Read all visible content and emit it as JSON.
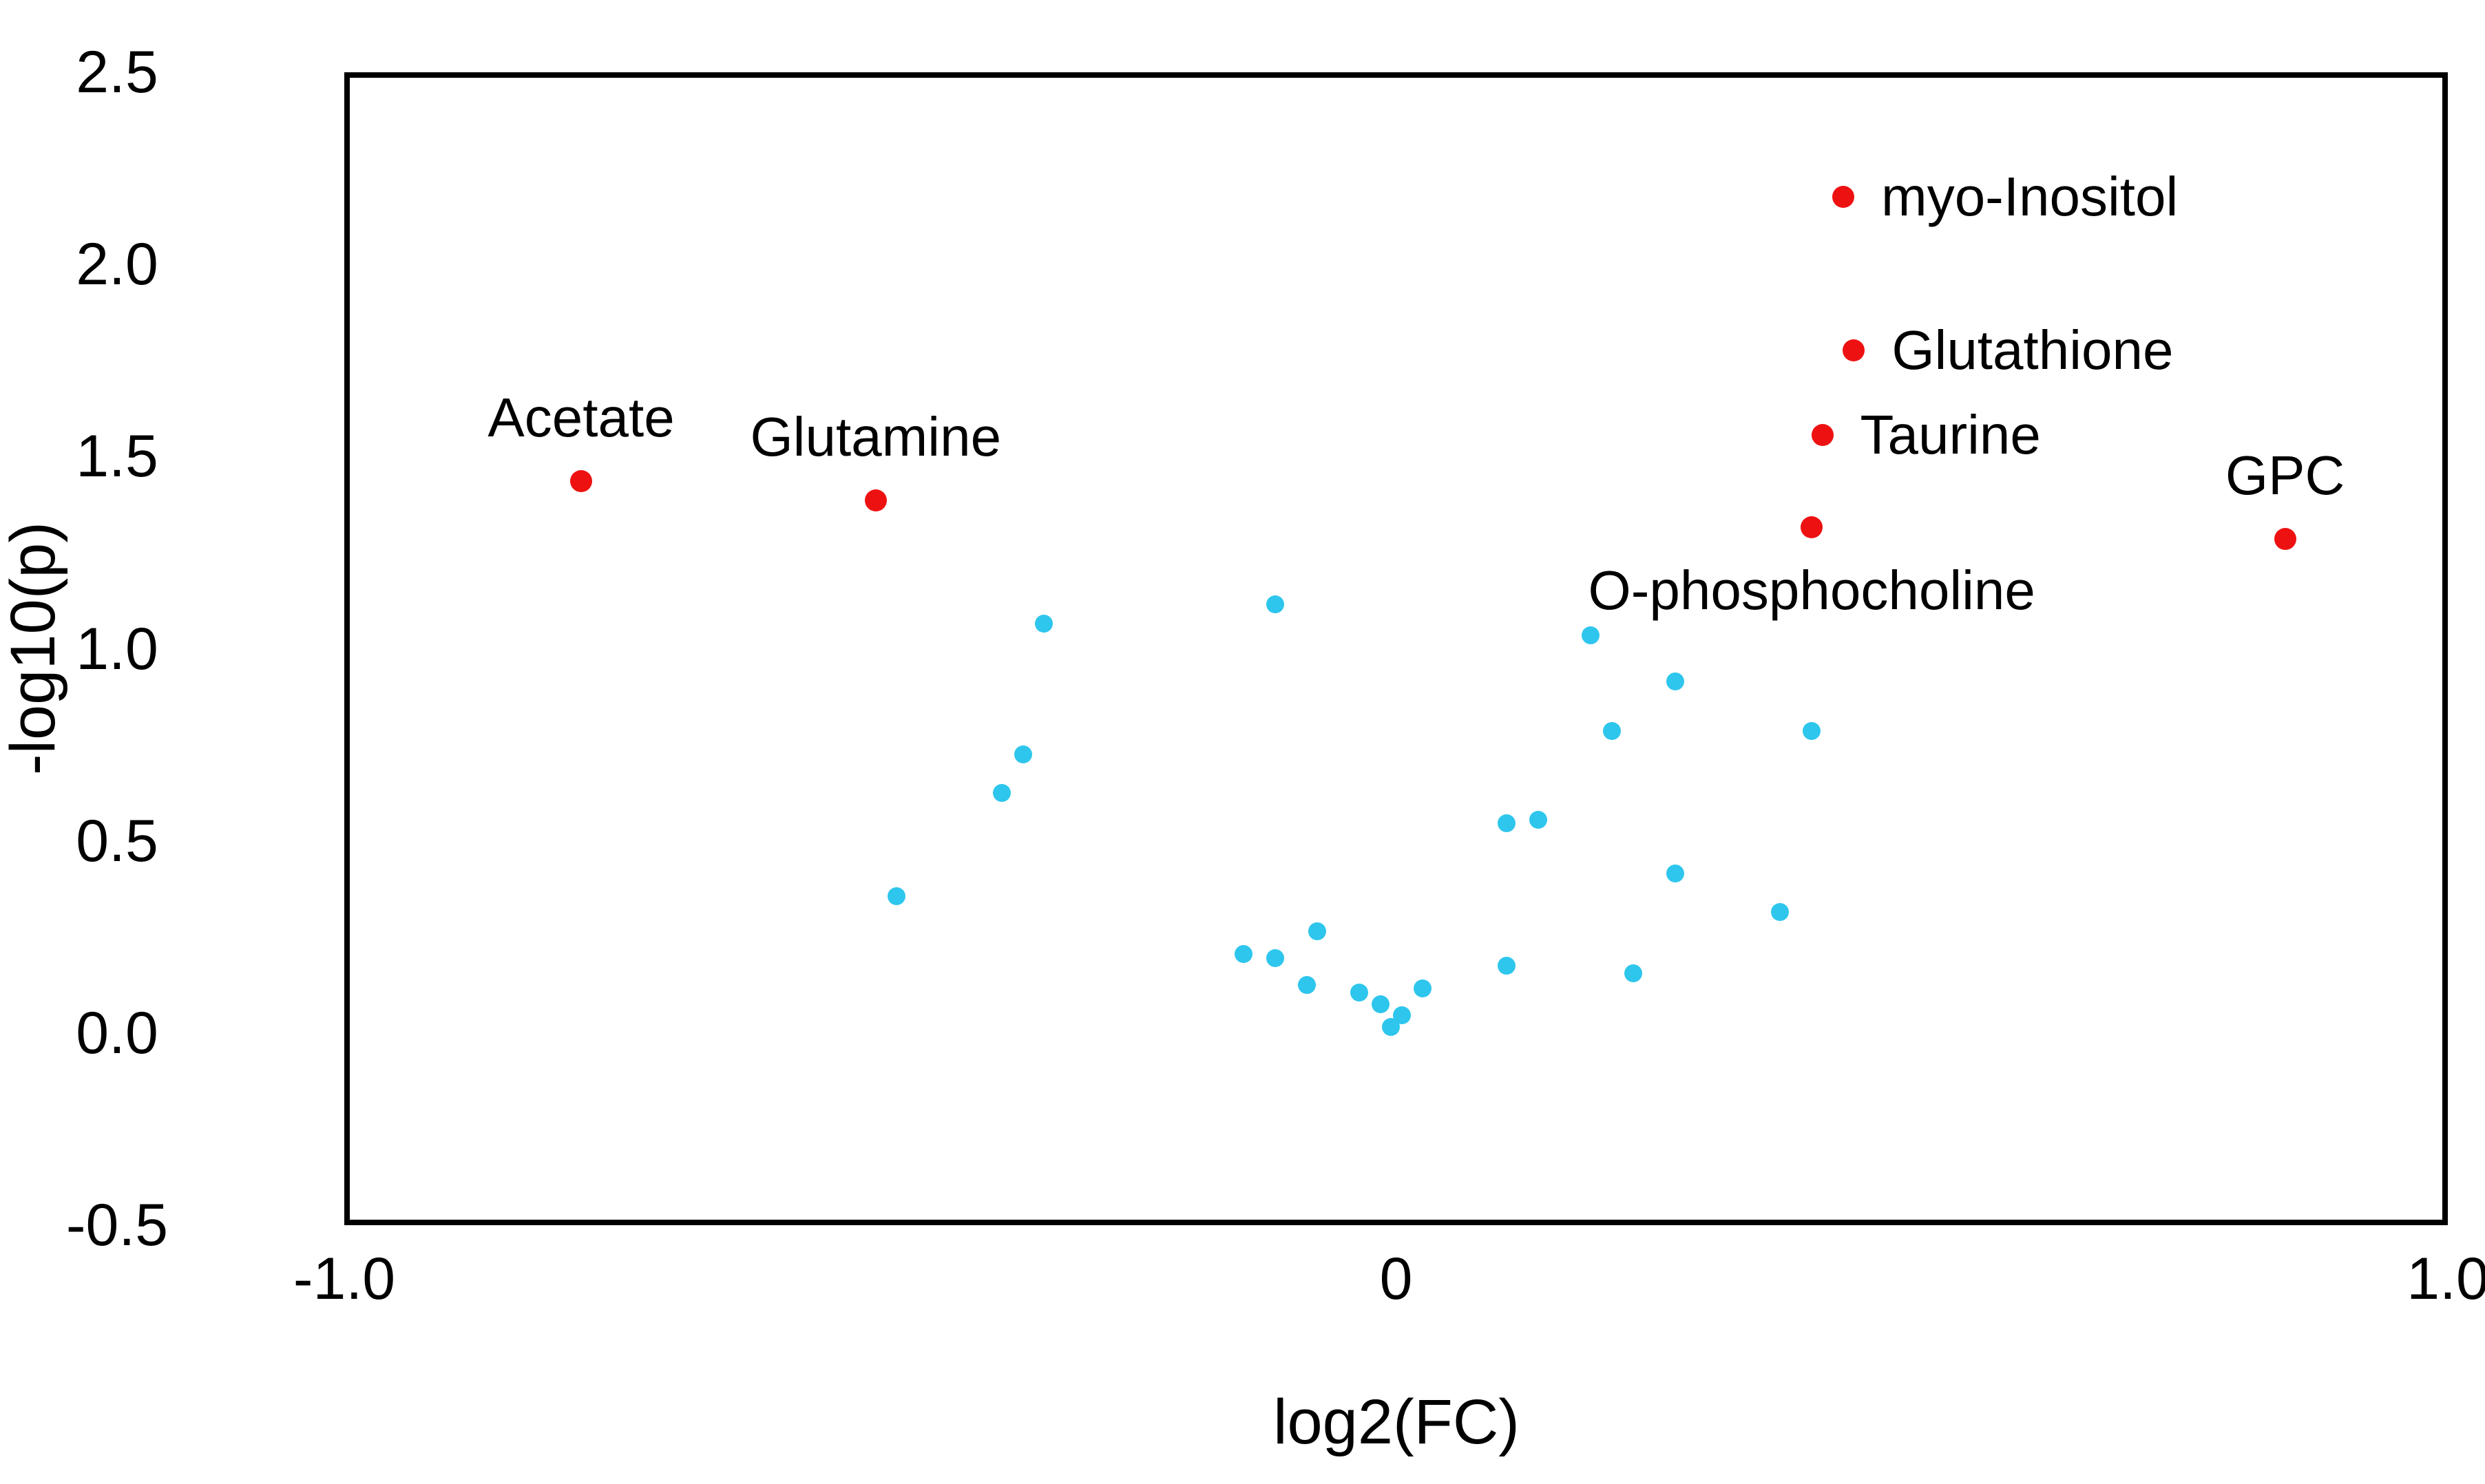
{
  "figure": {
    "background": "#FFFFFF",
    "axis_color": "#000000",
    "tick_color": "#000000"
  },
  "chart_data": {
    "type": "scatter",
    "title": "",
    "xlabel": "log2(FC)",
    "ylabel": "-log10(p)",
    "xlim": [
      -1.0,
      1.0
    ],
    "ylim": [
      -0.5,
      2.5
    ],
    "grid": false,
    "legend": "none",
    "x_ticks": [
      {
        "value": -1.0,
        "label": "-1.0"
      },
      {
        "value": 0.0,
        "label": "0"
      },
      {
        "value": 1.0,
        "label": "1.0"
      }
    ],
    "y_ticks": [
      {
        "value": 2.5,
        "label": "2.5"
      },
      {
        "value": 2.0,
        "label": "2.0"
      },
      {
        "value": 1.5,
        "label": "1.5"
      },
      {
        "value": 1.0,
        "label": "1.0"
      },
      {
        "value": 0.5,
        "label": "0.5"
      },
      {
        "value": 0.0,
        "label": "0.0"
      },
      {
        "value": -0.5,
        "label": "-0.5"
      }
    ],
    "series": [
      {
        "name": "significant",
        "color": "#EE1111",
        "marker_size": 32,
        "points": [
          {
            "x": -0.78,
            "y": 1.45,
            "label": "Acetate",
            "label_pos": "above"
          },
          {
            "x": -0.5,
            "y": 1.4,
            "label": "Glutamine",
            "label_pos": "above"
          },
          {
            "x": 0.42,
            "y": 2.19,
            "label": "myo-Inositol",
            "label_pos": "right"
          },
          {
            "x": 0.43,
            "y": 1.79,
            "label": "Glutathione",
            "label_pos": "right"
          },
          {
            "x": 0.4,
            "y": 1.57,
            "label": "Taurine",
            "label_pos": "right"
          },
          {
            "x": 0.39,
            "y": 1.33,
            "label": "O-phosphocholine",
            "label_pos": "below"
          },
          {
            "x": 0.84,
            "y": 1.3,
            "label": "GPC",
            "label_pos": "above"
          }
        ]
      },
      {
        "name": "not-significant",
        "color": "#2EC6EC",
        "marker_size": 26,
        "points": [
          {
            "x": -0.34,
            "y": 1.08
          },
          {
            "x": -0.12,
            "y": 1.13
          },
          {
            "x": 0.18,
            "y": 1.05
          },
          {
            "x": 0.26,
            "y": 0.93
          },
          {
            "x": 0.2,
            "y": 0.8
          },
          {
            "x": 0.39,
            "y": 0.8
          },
          {
            "x": -0.36,
            "y": 0.74
          },
          {
            "x": -0.38,
            "y": 0.64
          },
          {
            "x": 0.1,
            "y": 0.56
          },
          {
            "x": 0.13,
            "y": 0.57
          },
          {
            "x": 0.26,
            "y": 0.43
          },
          {
            "x": -0.48,
            "y": 0.37
          },
          {
            "x": 0.36,
            "y": 0.33
          },
          {
            "x": -0.08,
            "y": 0.28
          },
          {
            "x": -0.15,
            "y": 0.22
          },
          {
            "x": -0.12,
            "y": 0.21
          },
          {
            "x": -0.09,
            "y": 0.14
          },
          {
            "x": -0.04,
            "y": 0.12
          },
          {
            "x": -0.02,
            "y": 0.09
          },
          {
            "x": 0.0,
            "y": 0.06
          },
          {
            "x": -0.01,
            "y": 0.03
          },
          {
            "x": 0.02,
            "y": 0.13
          },
          {
            "x": 0.1,
            "y": 0.19
          },
          {
            "x": 0.22,
            "y": 0.17
          }
        ]
      }
    ]
  }
}
